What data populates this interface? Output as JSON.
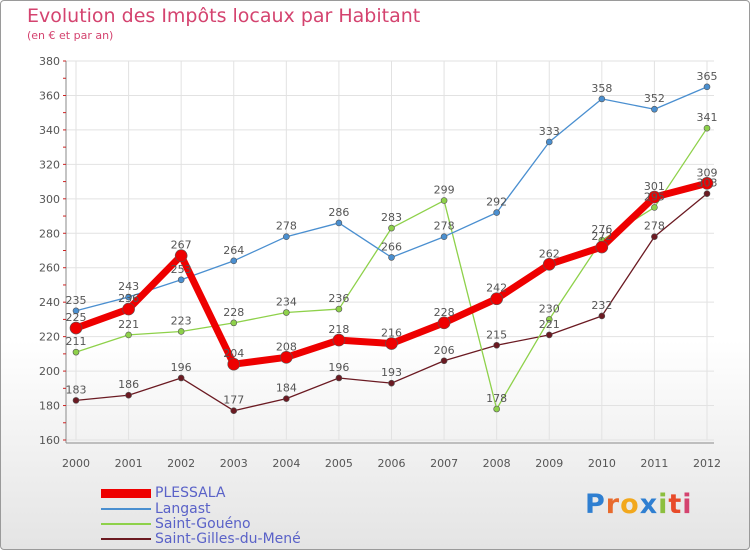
{
  "title": "Evolution des Impôts locaux par Habitant",
  "subtitle": "(en € et par an)",
  "logo": {
    "text": "Proxiti",
    "colors": [
      "#2f7fd1",
      "#e86a2d",
      "#f2a81d",
      "#2f7fd1",
      "#8cbf3f",
      "#e84b2a",
      "#d4436f"
    ]
  },
  "colors": {
    "title": "#d4436f",
    "axis": "#8a8a8a",
    "grid": "#e2e2e2",
    "tick_mark": "#cc2222",
    "label": "#555555",
    "legend_text": "#5a62c8"
  },
  "chart_data": {
    "type": "line",
    "x": [
      "2000",
      "2001",
      "2002",
      "2003",
      "2004",
      "2005",
      "2006",
      "2007",
      "2008",
      "2009",
      "2010",
      "2011",
      "2012"
    ],
    "ylim": [
      160,
      380
    ],
    "yticks": [
      160,
      180,
      200,
      220,
      240,
      260,
      280,
      300,
      320,
      340,
      360,
      380
    ],
    "grid": true,
    "legend_position": "bottom-left",
    "series": [
      {
        "name": "PLESSALA",
        "color": "#ee0000",
        "values": [
          225,
          236,
          267,
          204,
          208,
          218,
          216,
          228,
          242,
          262,
          272,
          301,
          309
        ]
      },
      {
        "name": "Langast",
        "color": "#4a8fd0",
        "values": [
          235,
          243,
          253,
          264,
          278,
          286,
          266,
          278,
          292,
          333,
          358,
          352,
          365
        ]
      },
      {
        "name": "Saint-Gouéno",
        "color": "#8ed14a",
        "values": [
          211,
          221,
          223,
          228,
          234,
          236,
          283,
          299,
          178,
          230,
          276,
          295,
          341
        ]
      },
      {
        "name": "Saint-Gilles-du-Mené",
        "color": "#6b1a22",
        "values": [
          183,
          186,
          196,
          177,
          184,
          196,
          193,
          206,
          215,
          221,
          232,
          278,
          303
        ]
      }
    ],
    "data_labels": [
      [
        "225",
        "236",
        "267",
        "204",
        "208",
        "218",
        "216",
        "228",
        "242",
        "262",
        "272",
        "301",
        "309"
      ],
      [
        "235",
        "243",
        "253",
        "264",
        "278",
        "286",
        "266",
        "278",
        "292",
        "333",
        "358",
        "352",
        "365"
      ],
      [
        "211",
        "221",
        "223",
        "228",
        "234",
        "236",
        "283",
        "299",
        "178",
        "230",
        "276",
        "295",
        "341"
      ],
      [
        "183",
        "186",
        "196",
        "177",
        "184",
        "196",
        "193",
        "206",
        "215",
        "221",
        "232",
        "278",
        "303"
      ]
    ]
  }
}
